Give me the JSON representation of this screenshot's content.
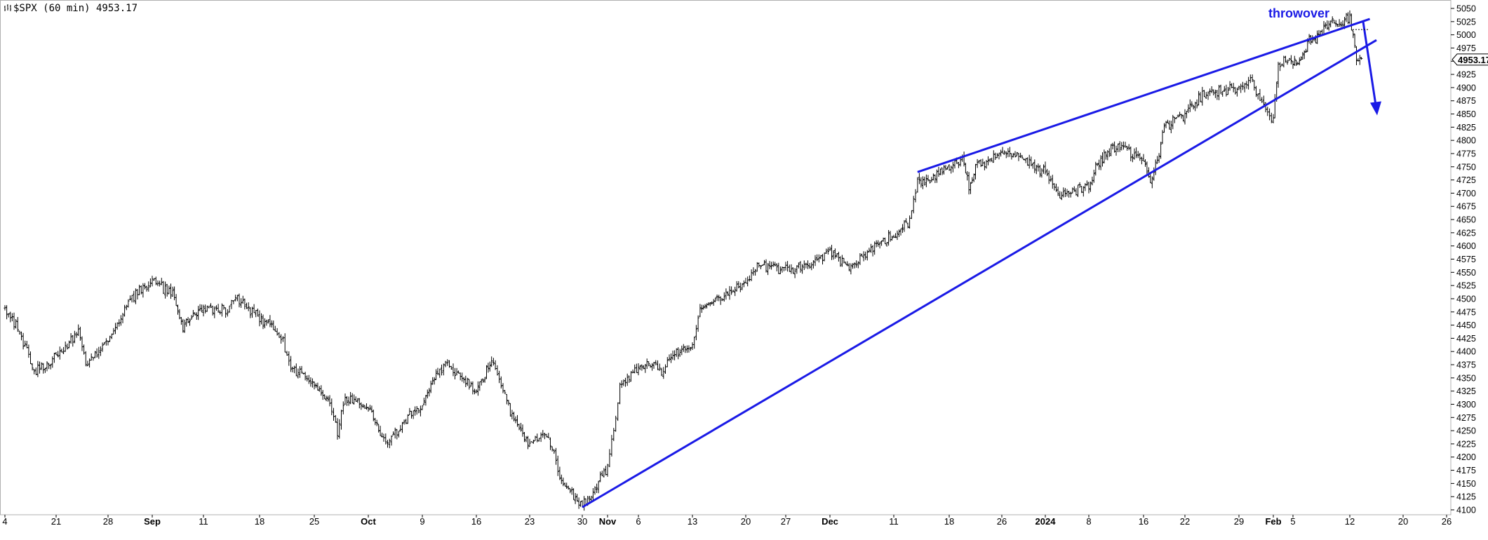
{
  "header": {
    "title": "$SPX (60 min) 4953.17",
    "icon": "bar-chart-icon"
  },
  "chart_data": {
    "type": "ohlc",
    "title": "$SPX (60 min) 4953.17",
    "last_value": "4953.17",
    "ylim": [
      4100,
      5050
    ],
    "y_ticks": [
      4100,
      4125,
      4150,
      4175,
      4200,
      4225,
      4250,
      4275,
      4300,
      4325,
      4350,
      4375,
      4400,
      4425,
      4450,
      4475,
      4500,
      4525,
      4550,
      4575,
      4600,
      4625,
      4650,
      4675,
      4700,
      4725,
      4750,
      4775,
      4800,
      4825,
      4850,
      4875,
      4900,
      4925,
      4950,
      4975,
      5000,
      5025,
      5050
    ],
    "y_axis_position": "right",
    "x_tick_labels": [
      {
        "label": "4",
        "bold": false
      },
      {
        "label": "21",
        "bold": false
      },
      {
        "label": "28",
        "bold": false
      },
      {
        "label": "Sep",
        "bold": true
      },
      {
        "label": "11",
        "bold": false
      },
      {
        "label": "18",
        "bold": false
      },
      {
        "label": "25",
        "bold": false
      },
      {
        "label": "Oct",
        "bold": true
      },
      {
        "label": "9",
        "bold": false
      },
      {
        "label": "16",
        "bold": false
      },
      {
        "label": "23",
        "bold": false
      },
      {
        "label": "30",
        "bold": false
      },
      {
        "label": "Nov",
        "bold": true
      },
      {
        "label": "6",
        "bold": false
      },
      {
        "label": "13",
        "bold": false
      },
      {
        "label": "20",
        "bold": false
      },
      {
        "label": "27",
        "bold": false
      },
      {
        "label": "Dec",
        "bold": true
      },
      {
        "label": "11",
        "bold": false
      },
      {
        "label": "18",
        "bold": false
      },
      {
        "label": "26",
        "bold": false
      },
      {
        "label": "2024",
        "bold": true
      },
      {
        "label": "8",
        "bold": false
      },
      {
        "label": "16",
        "bold": false
      },
      {
        "label": "22",
        "bold": false
      },
      {
        "label": "29",
        "bold": false
      },
      {
        "label": "Feb",
        "bold": true
      },
      {
        "label": "5",
        "bold": false
      },
      {
        "label": "12",
        "bold": false
      },
      {
        "label": "20",
        "bold": false
      },
      {
        "label": "26",
        "bold": false
      }
    ],
    "price_path": [
      [
        "2023-08-14",
        4480
      ],
      [
        "2023-08-16",
        4440
      ],
      [
        "2023-08-18",
        4360
      ],
      [
        "2023-08-21",
        4390
      ],
      [
        "2023-08-23",
        4420
      ],
      [
        "2023-08-24",
        4440
      ],
      [
        "2023-08-25",
        4380
      ],
      [
        "2023-08-28",
        4420
      ],
      [
        "2023-08-30",
        4500
      ],
      [
        "2023-08-31",
        4520
      ],
      [
        "2023-09-01",
        4530
      ],
      [
        "2023-09-05",
        4510
      ],
      [
        "2023-09-07",
        4450
      ],
      [
        "2023-09-08",
        4460
      ],
      [
        "2023-09-11",
        4485
      ],
      [
        "2023-09-14",
        4480
      ],
      [
        "2023-09-15",
        4505
      ],
      [
        "2023-09-18",
        4460
      ],
      [
        "2023-09-20",
        4440
      ],
      [
        "2023-09-21",
        4420
      ],
      [
        "2023-09-22",
        4370
      ],
      [
        "2023-09-25",
        4340
      ],
      [
        "2023-09-27",
        4300
      ],
      [
        "2023-09-28",
        4250
      ],
      [
        "2023-09-29",
        4310
      ],
      [
        "2023-10-02",
        4300
      ],
      [
        "2023-10-04",
        4230
      ],
      [
        "2023-10-05",
        4240
      ],
      [
        "2023-10-09",
        4300
      ],
      [
        "2023-10-11",
        4360
      ],
      [
        "2023-10-12",
        4380
      ],
      [
        "2023-10-13",
        4360
      ],
      [
        "2023-10-16",
        4330
      ],
      [
        "2023-10-18",
        4380
      ],
      [
        "2023-10-19",
        4350
      ],
      [
        "2023-10-20",
        4300
      ],
      [
        "2023-10-23",
        4220
      ],
      [
        "2023-10-25",
        4250
      ],
      [
        "2023-10-26",
        4220
      ],
      [
        "2023-10-27",
        4160
      ],
      [
        "2023-10-30",
        4110
      ],
      [
        "2023-10-31",
        4140
      ],
      [
        "2023-11-01",
        4180
      ],
      [
        "2023-11-02",
        4260
      ],
      [
        "2023-11-03",
        4330
      ],
      [
        "2023-11-06",
        4370
      ],
      [
        "2023-11-08",
        4380
      ],
      [
        "2023-11-09",
        4350
      ],
      [
        "2023-11-10",
        4390
      ],
      [
        "2023-11-13",
        4410
      ],
      [
        "2023-11-14",
        4480
      ],
      [
        "2023-11-16",
        4500
      ],
      [
        "2023-11-20",
        4530
      ],
      [
        "2023-11-22",
        4560
      ],
      [
        "2023-11-27",
        4555
      ],
      [
        "2023-11-29",
        4560
      ],
      [
        "2023-11-30",
        4575
      ],
      [
        "2023-12-01",
        4590
      ],
      [
        "2023-12-04",
        4560
      ],
      [
        "2023-12-06",
        4580
      ],
      [
        "2023-12-08",
        4600
      ],
      [
        "2023-12-11",
        4620
      ],
      [
        "2023-12-13",
        4650
      ],
      [
        "2023-12-14",
        4720
      ],
      [
        "2023-12-18",
        4745
      ],
      [
        "2023-12-20",
        4770
      ],
      [
        "2023-12-21",
        4710
      ],
      [
        "2023-12-22",
        4750
      ],
      [
        "2023-12-27",
        4780
      ],
      [
        "2023-12-29",
        4770
      ],
      [
        "2024-01-02",
        4740
      ],
      [
        "2024-01-04",
        4690
      ],
      [
        "2024-01-05",
        4700
      ],
      [
        "2024-01-08",
        4715
      ],
      [
        "2024-01-09",
        4750
      ],
      [
        "2024-01-11",
        4780
      ],
      [
        "2024-01-12",
        4790
      ],
      [
        "2024-01-16",
        4765
      ],
      [
        "2024-01-17",
        4720
      ],
      [
        "2024-01-18",
        4760
      ],
      [
        "2024-01-19",
        4830
      ],
      [
        "2024-01-22",
        4850
      ],
      [
        "2024-01-24",
        4880
      ],
      [
        "2024-01-25",
        4890
      ],
      [
        "2024-01-29",
        4900
      ],
      [
        "2024-01-30",
        4915
      ],
      [
        "2024-01-31",
        4870
      ],
      [
        "2024-02-01",
        4840
      ],
      [
        "2024-02-02",
        4950
      ],
      [
        "2024-02-05",
        4945
      ],
      [
        "2024-02-06",
        4950
      ],
      [
        "2024-02-07",
        4990
      ],
      [
        "2024-02-08",
        4995
      ],
      [
        "2024-02-09",
        5020
      ],
      [
        "2024-02-12",
        5030
      ],
      [
        "2024-02-13",
        4950
      ],
      [
        "2024-02-14",
        4953
      ]
    ],
    "trendlines": [
      {
        "name": "upper",
        "color": "#1a1ae6",
        "points": [
          [
            "2023-12-14",
            4740
          ],
          [
            "2024-02-15",
            5030
          ]
        ]
      },
      {
        "name": "lower",
        "color": "#1a1ae6",
        "points": [
          [
            "2023-10-30",
            4105
          ],
          [
            "2024-02-16",
            4990
          ]
        ]
      },
      {
        "name": "arrow",
        "color": "#1a1ae6",
        "points": [
          [
            "2024-02-14",
            5025
          ],
          [
            "2024-02-16",
            4850
          ]
        ]
      }
    ],
    "annotations": [
      {
        "text": "throwover",
        "color": "#1a1ae6"
      }
    ],
    "colors": {
      "bars": "#000000",
      "trend": "#1a1ae6",
      "accent": "#1a1ae6"
    }
  }
}
